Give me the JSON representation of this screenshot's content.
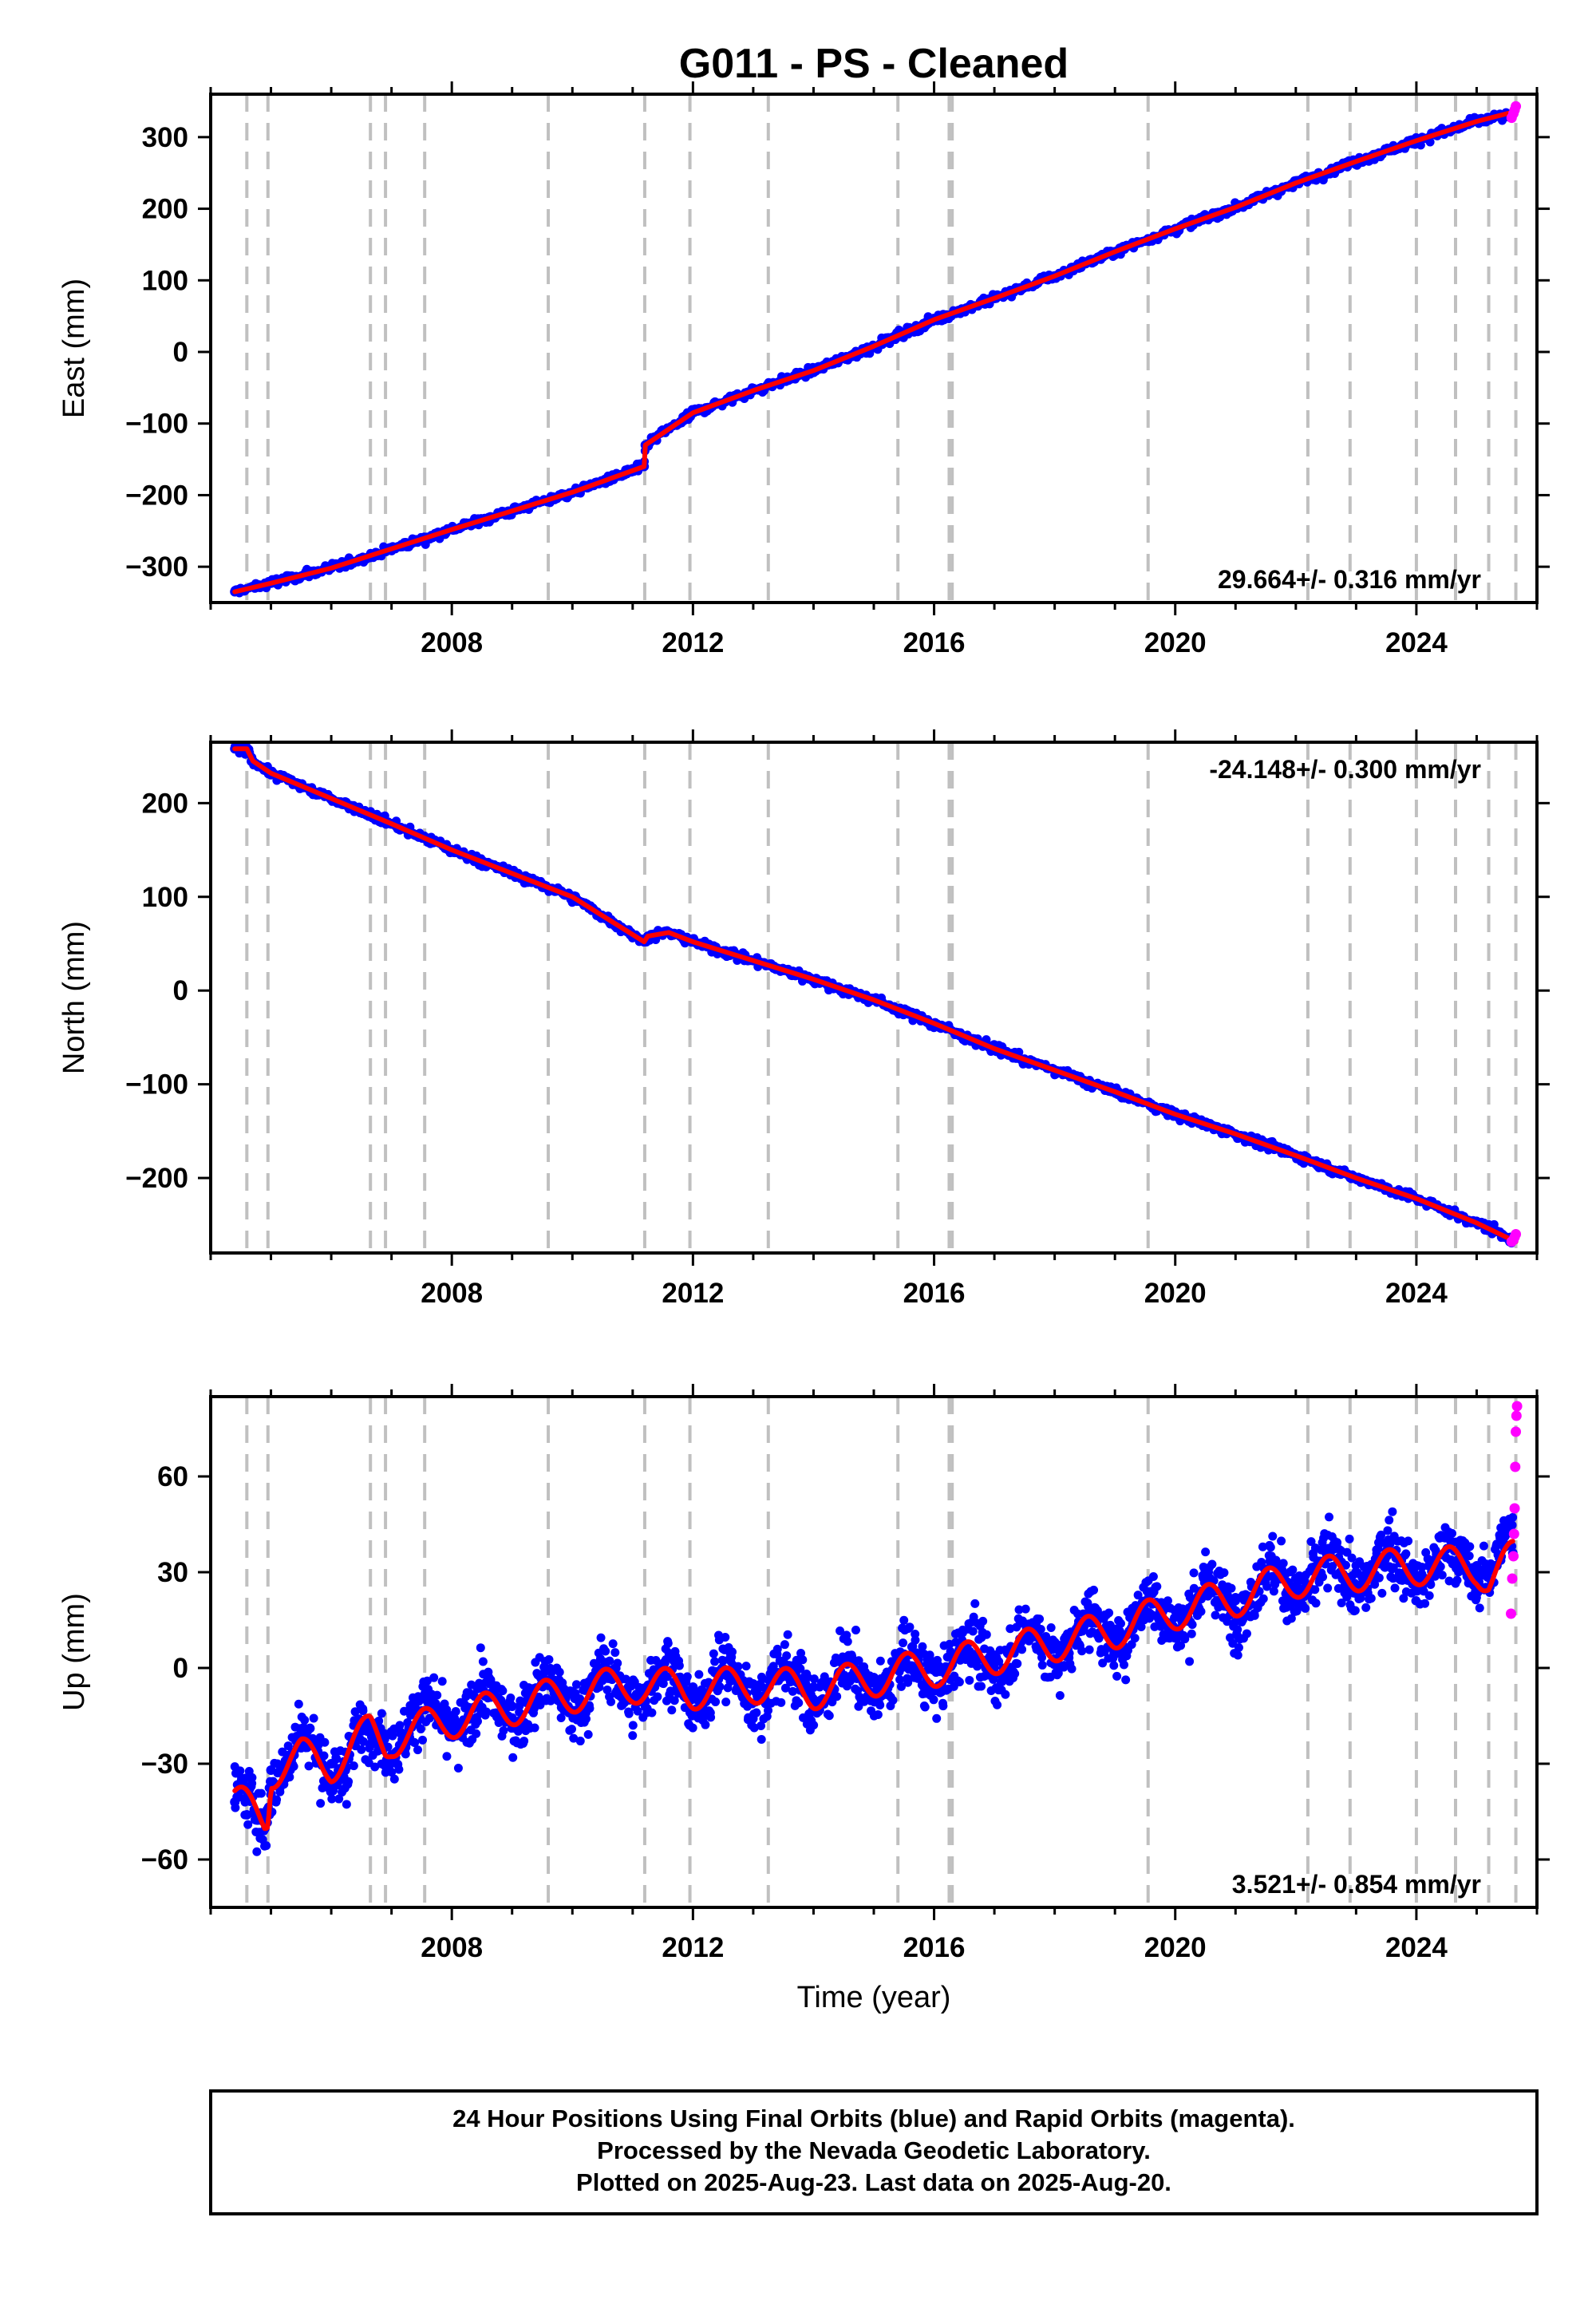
{
  "title": "G011  - PS - Cleaned",
  "xlabel": "Time (year)",
  "footer": {
    "line1": "24 Hour Positions Using Final Orbits (blue) and Rapid Orbits (magenta).",
    "line2": "Processed by the Nevada Geodetic Laboratory.",
    "line3": "Plotted on 2025-Aug-23. Last data on 2025-Aug-20."
  },
  "colors": {
    "final_orbits": "#0000ff",
    "rapid_orbits": "#ff00ff",
    "model": "#ff0000",
    "event_lines": "#c0c0c0"
  },
  "chart_data": [
    {
      "type": "scatter",
      "component": "East",
      "ylabel": "East (mm)",
      "rate_text": "29.664+/- 0.316 mm/yr",
      "rate_position": "bottom-right",
      "xlim": [
        2004.0,
        2026.0
      ],
      "ylim": [
        -350,
        360
      ],
      "xticks": [
        2008,
        2012,
        2016,
        2020,
        2024
      ],
      "yticks": [
        -300,
        -200,
        -100,
        0,
        100,
        200,
        300
      ],
      "events": [
        2004.6,
        2004.95,
        2006.65,
        2006.9,
        2007.55,
        2009.6,
        2011.2,
        2011.95,
        2013.25,
        2015.4,
        2016.25,
        2016.3,
        2019.55,
        2022.2,
        2022.9,
        2024.0,
        2024.65,
        2025.2,
        2025.65
      ],
      "series": [
        {
          "name": "Final Orbits (blue)",
          "x": [
            2004.4,
            2005.0,
            2006.0,
            2007.0,
            2008.0,
            2009.0,
            2010.0,
            2011.19,
            2011.21,
            2012.0,
            2013.0,
            2014.0,
            2015.0,
            2016.0,
            2017.0,
            2018.0,
            2019.0,
            2020.0,
            2021.0,
            2022.0,
            2023.0,
            2024.0,
            2025.0,
            2025.6
          ],
          "y": [
            -335,
            -323,
            -302,
            -275,
            -248,
            -222,
            -196,
            -160,
            -130,
            -85,
            -54,
            -26,
            8,
            45,
            75,
            106,
            140,
            172,
            202,
            236,
            266,
            295,
            322,
            332
          ]
        },
        {
          "name": "Rapid Orbits (magenta)",
          "x": [
            2025.58,
            2025.61,
            2025.63,
            2025.65
          ],
          "y": [
            327,
            333,
            338,
            343
          ]
        },
        {
          "name": "Model",
          "x": [
            2004.4,
            2005.0,
            2006.0,
            2007.0,
            2008.0,
            2009.0,
            2010.0,
            2011.19,
            2011.21,
            2012.0,
            2013.0,
            2014.0,
            2015.0,
            2016.0,
            2017.0,
            2018.0,
            2019.0,
            2020.0,
            2021.0,
            2022.0,
            2023.0,
            2024.0,
            2025.0,
            2025.65
          ],
          "y": [
            -335,
            -323,
            -302,
            -275,
            -248,
            -222,
            -196,
            -160,
            -130,
            -85,
            -54,
            -26,
            8,
            45,
            75,
            106,
            140,
            172,
            202,
            236,
            266,
            295,
            322,
            336
          ]
        }
      ]
    },
    {
      "type": "scatter",
      "component": "North",
      "ylabel": "North (mm)",
      "rate_text": "-24.148+/- 0.300 mm/yr",
      "rate_position": "top-right",
      "xlim": [
        2004.0,
        2026.0
      ],
      "ylim": [
        -280,
        265
      ],
      "xticks": [
        2008,
        2012,
        2016,
        2020,
        2024
      ],
      "yticks": [
        -200,
        -100,
        0,
        100,
        200
      ],
      "events": [
        2004.6,
        2004.95,
        2006.65,
        2006.9,
        2007.55,
        2009.6,
        2011.2,
        2011.95,
        2013.25,
        2015.4,
        2016.25,
        2016.3,
        2019.55,
        2022.2,
        2022.9,
        2024.0,
        2024.65,
        2025.2,
        2025.65
      ],
      "series": [
        {
          "name": "Final Orbits (blue)",
          "x": [
            2004.4,
            2004.6,
            2004.7,
            2005.0,
            2006.0,
            2007.0,
            2008.0,
            2009.0,
            2010.0,
            2011.19,
            2011.25,
            2011.6,
            2012.0,
            2013.0,
            2014.0,
            2015.0,
            2016.0,
            2017.0,
            2018.0,
            2019.0,
            2020.0,
            2021.0,
            2022.0,
            2023.0,
            2024.0,
            2025.0,
            2025.6
          ],
          "y": [
            258,
            258,
            245,
            232,
            205,
            178,
            150,
            125,
            100,
            52,
            58,
            62,
            52,
            32,
            12,
            -10,
            -35,
            -62,
            -85,
            -108,
            -132,
            -153,
            -176,
            -200,
            -222,
            -248,
            -265
          ]
        },
        {
          "name": "Rapid Orbits (magenta)",
          "x": [
            2025.58,
            2025.61,
            2025.63,
            2025.65
          ],
          "y": [
            -268,
            -266,
            -263,
            -260
          ]
        },
        {
          "name": "Model",
          "x": [
            2004.4,
            2004.6,
            2004.7,
            2005.0,
            2006.0,
            2007.0,
            2008.0,
            2009.0,
            2010.0,
            2011.19,
            2011.25,
            2011.6,
            2012.0,
            2013.0,
            2014.0,
            2015.0,
            2016.0,
            2017.0,
            2018.0,
            2019.0,
            2020.0,
            2021.0,
            2022.0,
            2023.0,
            2024.0,
            2025.0,
            2025.65
          ],
          "y": [
            258,
            258,
            245,
            232,
            205,
            178,
            150,
            125,
            100,
            52,
            58,
            62,
            52,
            32,
            12,
            -10,
            -35,
            -62,
            -85,
            -108,
            -132,
            -153,
            -176,
            -200,
            -222,
            -248,
            -268
          ]
        }
      ]
    },
    {
      "type": "scatter",
      "component": "Up",
      "ylabel": "Up (mm)",
      "rate_text": "3.521+/- 0.854 mm/yr",
      "rate_position": "bottom-right",
      "xlim": [
        2004.0,
        2026.0
      ],
      "ylim": [
        -75,
        85
      ],
      "xticks": [
        2008,
        2012,
        2016,
        2020,
        2024
      ],
      "yticks": [
        -60,
        -30,
        0,
        30,
        60
      ],
      "events": [
        2004.6,
        2004.95,
        2006.65,
        2006.9,
        2007.55,
        2009.6,
        2011.2,
        2011.95,
        2013.25,
        2015.4,
        2016.25,
        2016.3,
        2019.55,
        2022.2,
        2022.9,
        2024.0,
        2024.65,
        2025.2,
        2025.65
      ],
      "series": [
        {
          "name": "Final Orbits (blue)",
          "x": [
            2004.4,
            2004.6,
            2004.9,
            2005.0,
            2005.5,
            2006.0,
            2007.0,
            2008.0,
            2009.0,
            2010.0,
            2011.0,
            2012.0,
            2013.0,
            2014.0,
            2015.0,
            2016.0,
            2017.0,
            2018.0,
            2019.0,
            2020.0,
            2021.0,
            2022.0,
            2023.0,
            2024.0,
            2025.0,
            2025.6
          ],
          "y": [
            -42,
            -46,
            -47,
            -32,
            -25,
            -30,
            -20,
            -15,
            -12,
            -8,
            -5,
            -6,
            -5,
            -6,
            -3,
            0,
            4,
            8,
            12,
            18,
            22,
            28,
            30,
            32,
            32,
            36
          ]
        },
        {
          "name": "Rapid Orbits (magenta)",
          "x": [
            2025.57,
            2025.59,
            2025.61,
            2025.62,
            2025.63,
            2025.64,
            2025.65,
            2025.66,
            2025.67
          ],
          "y": [
            17,
            28,
            35,
            42,
            50,
            63,
            74,
            79,
            82
          ]
        },
        {
          "name": "Model",
          "x": [
            2004.4,
            2004.6,
            2004.9,
            2004.95,
            2005.0,
            2005.5,
            2006.0,
            2006.65,
            2006.9,
            2007.0,
            2008.0,
            2009.0,
            2010.0,
            2011.0,
            2012.0,
            2013.0,
            2014.0,
            2015.0,
            2016.0,
            2017.0,
            2018.0,
            2019.0,
            2020.0,
            2021.0,
            2022.0,
            2023.0,
            2024.0,
            2025.0,
            2025.2,
            2025.6
          ],
          "y": [
            -42,
            -44,
            -47,
            -45,
            -32,
            -28,
            -30,
            -20,
            -24,
            -22,
            -16,
            -12,
            -8,
            -5,
            -7,
            -5,
            -7,
            -3,
            0,
            4,
            8,
            12,
            18,
            22,
            28,
            30,
            32,
            32,
            28,
            34
          ]
        }
      ]
    }
  ]
}
